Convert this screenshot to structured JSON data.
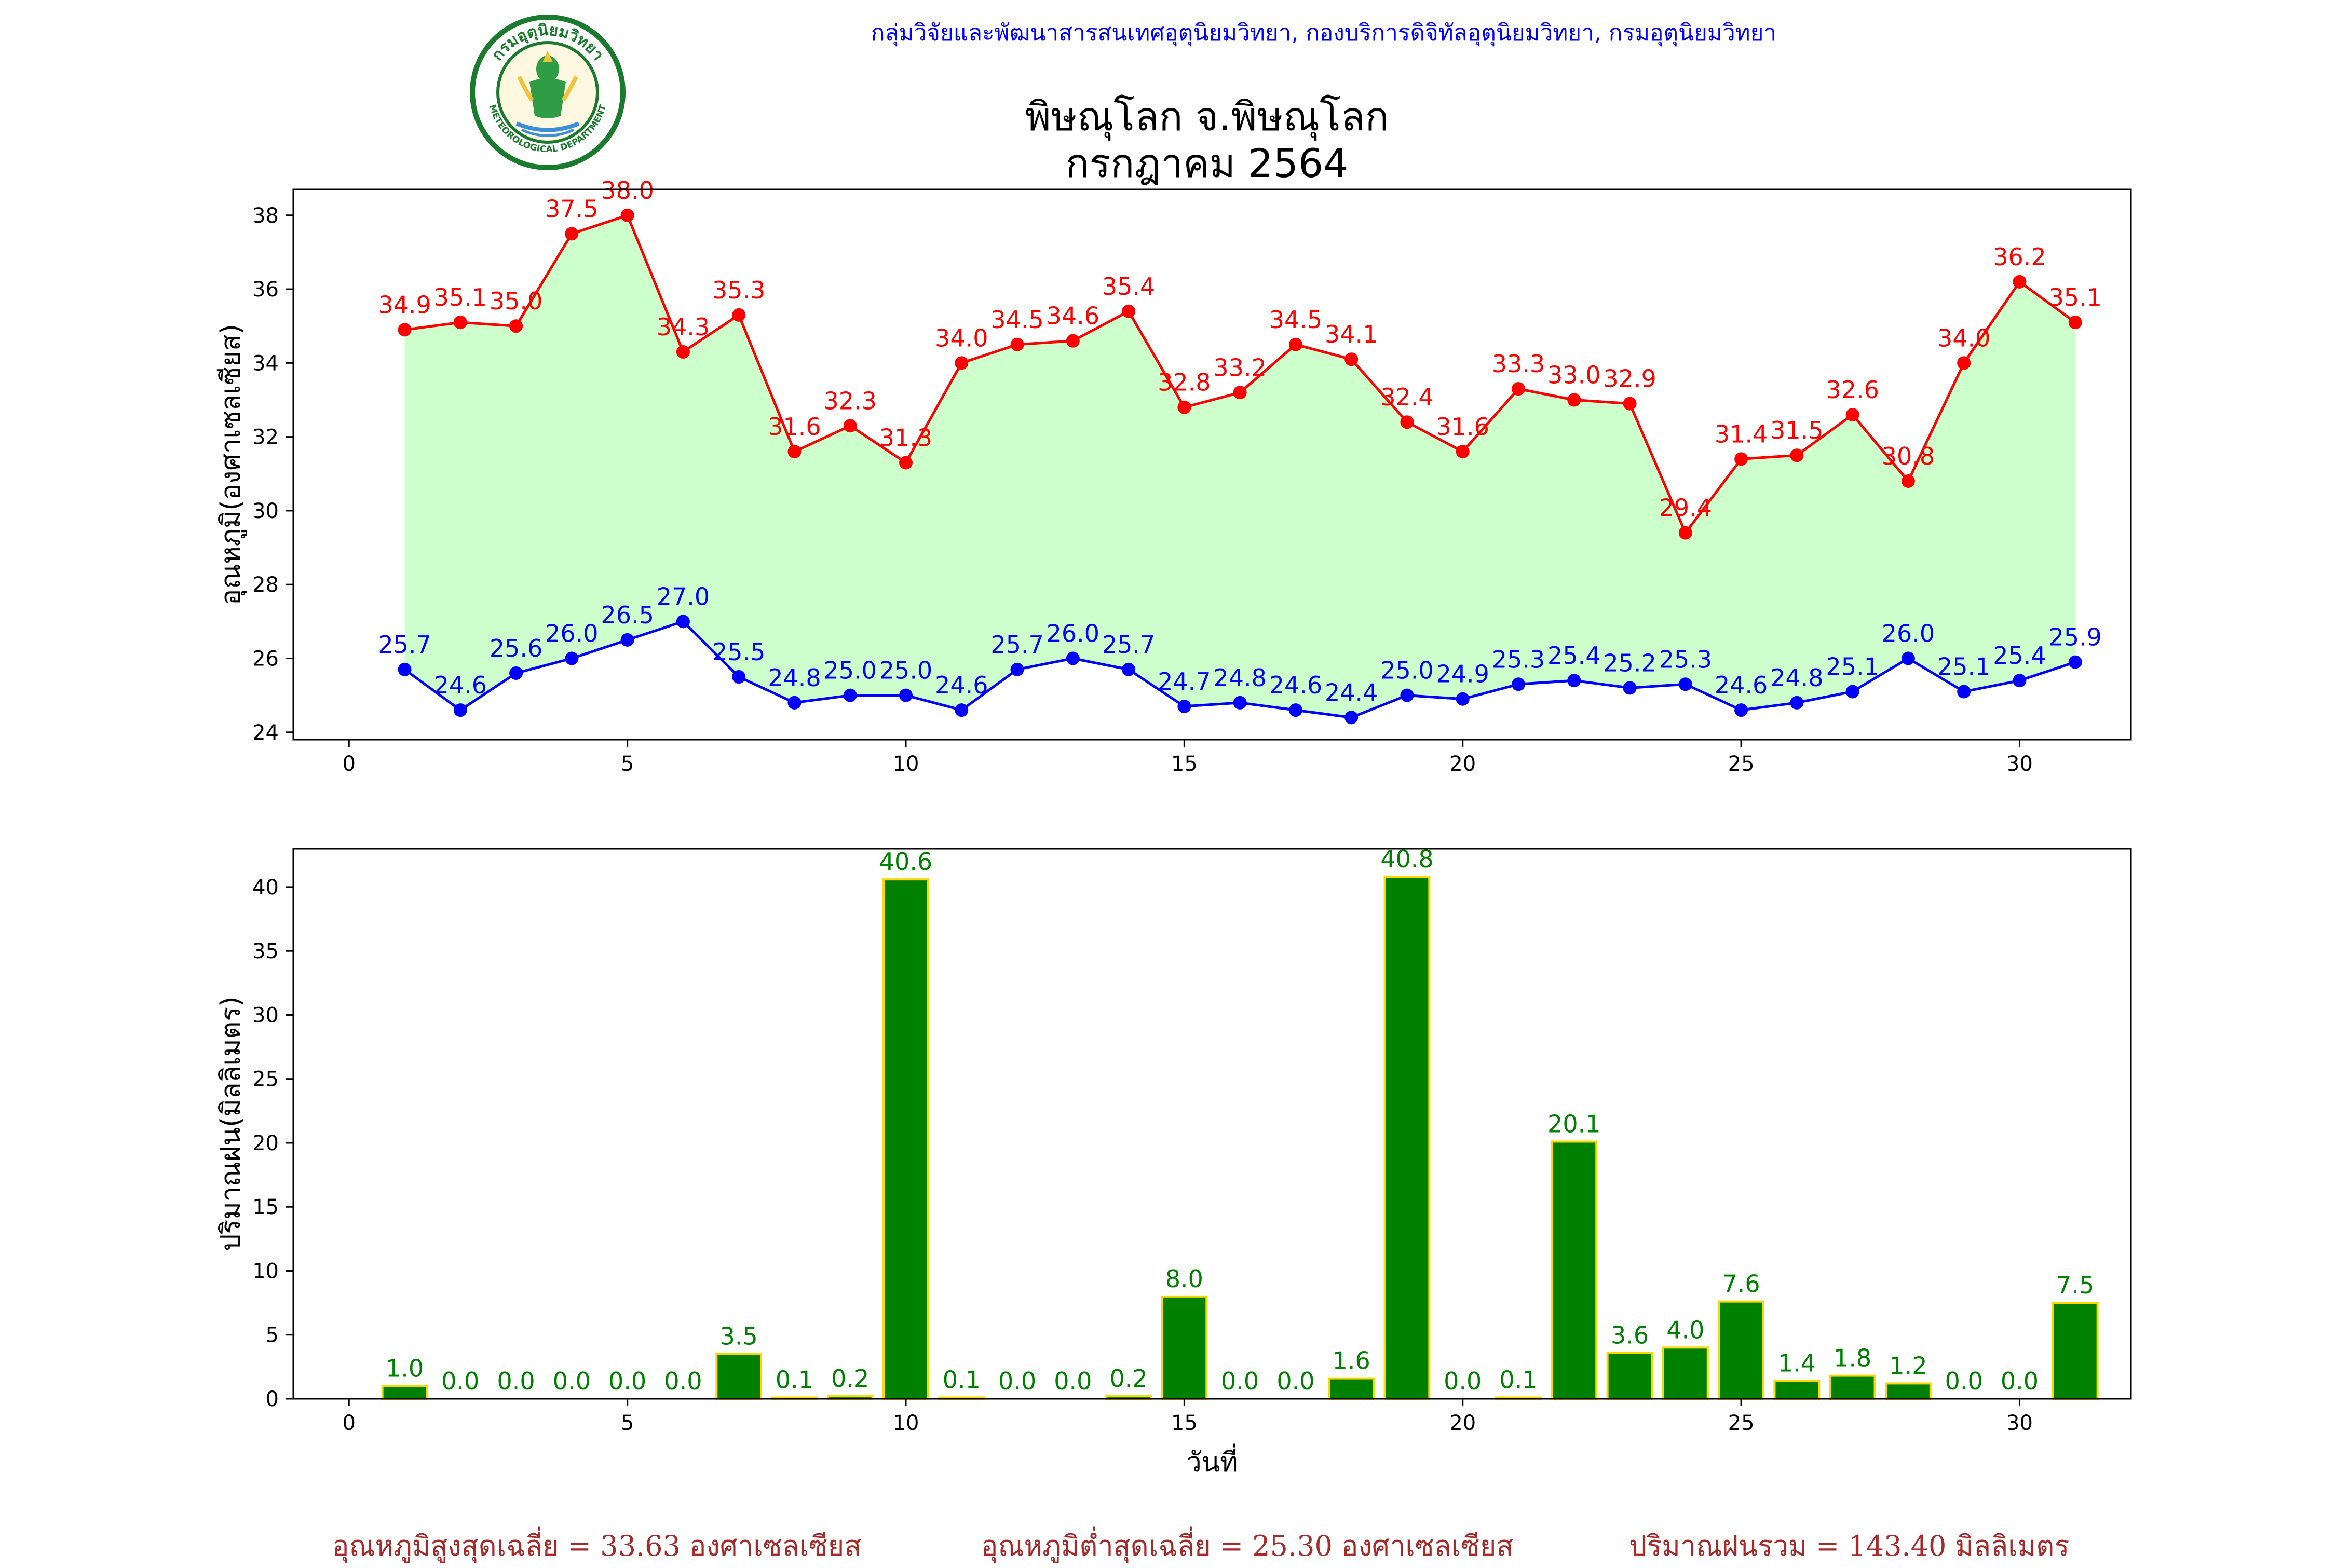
{
  "header": {
    "credit": "กลุ่มวิจัยและพัฒนาสารสนเทศอุตุนิยมวิทยา, กองบริการดิจิทัลอุตุนิยมวิทยา, กรมอุตุนิยมวิทยา",
    "title_line1": "พิษณุโลก จ.พิษณุโลก",
    "title_line2": "กรกฎาคม 2564",
    "logo": {
      "arc_text_top": "กรมอุตุนิยมวิทยา",
      "arc_text_bottom": "METEOROLOGICAL DEPARTMENT",
      "ring_color": "#1a7a2e",
      "fill_color": "#f2c23a"
    }
  },
  "summary": {
    "avg_max": "อุณหภูมิสูงสุดเฉลี่ย = 33.63 องศาเซลเซียส",
    "avg_min": "อุณหภูมิต่ำสุดเฉลี่ย = 25.30 องศาเซลเซียส",
    "total_rain": "ปริมาณฝนรวม = 143.40 มิลลิเมตร"
  },
  "chart_data": [
    {
      "type": "line",
      "ylabel": "อุณหภูมิ(องศาเซลเซียส)",
      "xlabel": "",
      "xlim": [
        -1,
        32
      ],
      "ylim": [
        23.8,
        38.7
      ],
      "xticks": [
        0,
        5,
        10,
        15,
        20,
        25,
        30
      ],
      "yticks": [
        24,
        26,
        28,
        30,
        32,
        34,
        36,
        38
      ],
      "fill_color": "#ccffcc",
      "x": [
        1,
        2,
        3,
        4,
        5,
        6,
        7,
        8,
        9,
        10,
        11,
        12,
        13,
        14,
        15,
        16,
        17,
        18,
        19,
        20,
        21,
        22,
        23,
        24,
        25,
        26,
        27,
        28,
        29,
        30,
        31
      ],
      "series": [
        {
          "color": "#ff0000",
          "values": [
            34.9,
            35.1,
            35.0,
            37.5,
            38.0,
            34.3,
            35.3,
            31.6,
            32.3,
            31.3,
            34.0,
            34.5,
            34.6,
            35.4,
            32.8,
            33.2,
            34.5,
            34.1,
            32.4,
            31.6,
            33.3,
            33.0,
            32.9,
            29.4,
            31.4,
            31.5,
            32.6,
            30.8,
            34.0,
            36.2,
            35.1
          ]
        },
        {
          "color": "#0000ff",
          "values": [
            25.7,
            24.6,
            25.6,
            26.0,
            26.5,
            27.0,
            25.5,
            24.8,
            25.0,
            25.0,
            24.6,
            25.7,
            26.0,
            25.7,
            24.7,
            24.8,
            24.6,
            24.4,
            25.0,
            24.9,
            25.3,
            25.4,
            25.2,
            25.3,
            24.6,
            24.8,
            25.1,
            26.0,
            25.1,
            25.4,
            25.9
          ]
        }
      ]
    },
    {
      "type": "bar",
      "ylabel": "ปริมาณฝน(มิลลิเมตร)",
      "xlabel": "วันที่",
      "xlim": [
        -1,
        32
      ],
      "ylim": [
        0,
        43
      ],
      "xticks": [
        0,
        5,
        10,
        15,
        20,
        25,
        30
      ],
      "yticks": [
        0,
        5,
        10,
        15,
        20,
        25,
        30,
        35,
        40
      ],
      "bar_color": "#008000",
      "edge_color": "#ffd700",
      "label_color": "#008000",
      "x": [
        1,
        2,
        3,
        4,
        5,
        6,
        7,
        8,
        9,
        10,
        11,
        12,
        13,
        14,
        15,
        16,
        17,
        18,
        19,
        20,
        21,
        22,
        23,
        24,
        25,
        26,
        27,
        28,
        29,
        30,
        31
      ],
      "values": [
        1.0,
        0.0,
        0.0,
        0.0,
        0.0,
        0.0,
        3.5,
        0.1,
        0.2,
        40.6,
        0.1,
        0.0,
        0.0,
        0.2,
        8.0,
        0.0,
        0.0,
        1.6,
        40.8,
        0.0,
        0.1,
        20.1,
        3.6,
        4.0,
        7.6,
        1.4,
        1.8,
        1.2,
        0.0,
        0.0,
        7.5
      ]
    }
  ]
}
